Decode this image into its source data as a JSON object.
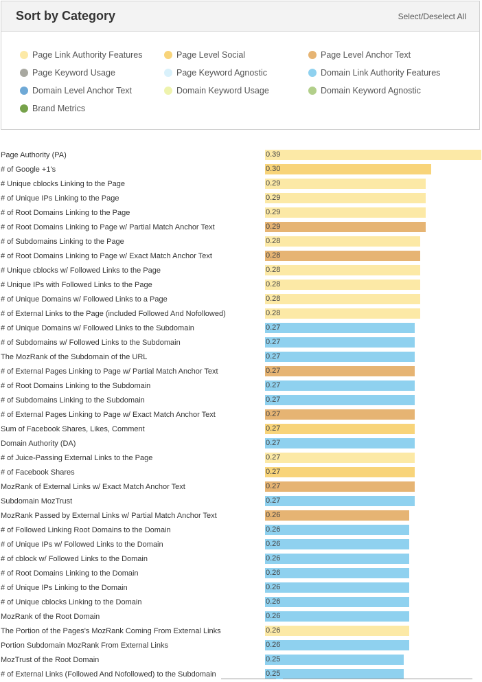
{
  "panel": {
    "title": "Sort by Category",
    "select_toggle": "Select/Deselect All"
  },
  "legend": [
    {
      "label": "Page Link Authority Features",
      "color": "#fce9a6",
      "icon": "dot-icon"
    },
    {
      "label": "Page Level Social",
      "color": "#f8d47a",
      "icon": "dot-icon"
    },
    {
      "label": "Page Level Anchor Text",
      "color": "#e6b473",
      "icon": "dot-icon"
    },
    {
      "label": "Page Keyword Usage",
      "color": "#a8a8a0",
      "icon": "dot-icon"
    },
    {
      "label": "Page Keyword Agnostic",
      "color": "#d9f1fb",
      "icon": "dot-icon"
    },
    {
      "label": "Domain Link Authority Features",
      "color": "#8fd1ef",
      "icon": "dot-icon"
    },
    {
      "label": "Domain Level Anchor Text",
      "color": "#6fa9d6",
      "icon": "dot-icon"
    },
    {
      "label": "Domain Keyword Usage",
      "color": "#eef3ad",
      "icon": "dot-icon"
    },
    {
      "label": "Domain Keyword Agnostic",
      "color": "#b2cf8a",
      "icon": "dot-icon"
    },
    {
      "label": "Brand Metrics",
      "color": "#76a24a",
      "icon": "dot-icon"
    }
  ],
  "chart_data": {
    "type": "bar",
    "orientation": "horizontal",
    "xlim": [
      0,
      0.39
    ],
    "category_colors": {
      "Page Link Authority Features": "#fce9a6",
      "Page Level Social": "#f8d47a",
      "Page Level Anchor Text": "#e6b473",
      "Domain Link Authority Features": "#8fd1ef"
    },
    "rows": [
      {
        "label": "Page Authority (PA)",
        "value": 0.39,
        "category": "Page Link Authority Features"
      },
      {
        "label": "# of Google +1's",
        "value": 0.3,
        "category": "Page Level Social"
      },
      {
        "label": "# Unique cblocks Linking to the Page",
        "value": 0.29,
        "category": "Page Link Authority Features"
      },
      {
        "label": "# of Unique IPs Linking to the Page",
        "value": 0.29,
        "category": "Page Link Authority Features"
      },
      {
        "label": "# of Root Domains Linking to the Page",
        "value": 0.29,
        "category": "Page Link Authority Features"
      },
      {
        "label": "# of Root Domains Linking to Page w/ Partial Match Anchor Text",
        "value": 0.29,
        "category": "Page Level Anchor Text"
      },
      {
        "label": "# of Subdomains Linking to the Page",
        "value": 0.28,
        "category": "Page Link Authority Features"
      },
      {
        "label": "# of Root Domains Linking to Page w/ Exact Match Anchor Text",
        "value": 0.28,
        "category": "Page Level Anchor Text"
      },
      {
        "label": "# Unique cblocks w/ Followed Links to the Page",
        "value": 0.28,
        "category": "Page Link Authority Features"
      },
      {
        "label": "# Unique IPs with Followed Links to the Page",
        "value": 0.28,
        "category": "Page Link Authority Features"
      },
      {
        "label": "# of Unique Domains w/ Followed Links to a Page",
        "value": 0.28,
        "category": "Page Link Authority Features"
      },
      {
        "label": "# of External Links to the Page (included Followed And Nofollowed)",
        "value": 0.28,
        "category": "Page Link Authority Features"
      },
      {
        "label": "# of Unique Domains w/ Followed Links to the Subdomain",
        "value": 0.27,
        "category": "Domain Link Authority Features"
      },
      {
        "label": "# of Subdomains w/ Followed Links to the Subdomain",
        "value": 0.27,
        "category": "Domain Link Authority Features"
      },
      {
        "label": "The MozRank of the Subdomain of the URL",
        "value": 0.27,
        "category": "Domain Link Authority Features"
      },
      {
        "label": "# of External Pages Linking to Page w/ Partial Match Anchor Text",
        "value": 0.27,
        "category": "Page Level Anchor Text"
      },
      {
        "label": "# of Root Domains Linking to the Subdomain",
        "value": 0.27,
        "category": "Domain Link Authority Features"
      },
      {
        "label": "# of Subdomains Linking to the Subdomain",
        "value": 0.27,
        "category": "Domain Link Authority Features"
      },
      {
        "label": "# of External Pages Linking to Page w/ Exact Match Anchor Text",
        "value": 0.27,
        "category": "Page Level Anchor Text"
      },
      {
        "label": "Sum of Facebook Shares, Likes, Comment",
        "value": 0.27,
        "category": "Page Level Social"
      },
      {
        "label": "Domain Authority (DA)",
        "value": 0.27,
        "category": "Domain Link Authority Features"
      },
      {
        "label": "# of Juice-Passing External Links to the Page",
        "value": 0.27,
        "category": "Page Link Authority Features"
      },
      {
        "label": "# of Facebook Shares",
        "value": 0.27,
        "category": "Page Level Social"
      },
      {
        "label": "MozRank of External Links w/ Exact Match Anchor Text",
        "value": 0.27,
        "category": "Page Level Anchor Text"
      },
      {
        "label": "Subdomain MozTrust",
        "value": 0.27,
        "category": "Domain Link Authority Features"
      },
      {
        "label": "MozRank Passed by External Links w/ Partial Match Anchor Text",
        "value": 0.26,
        "category": "Page Level Anchor Text"
      },
      {
        "label": "# of Followed Linking Root Domains to the Domain",
        "value": 0.26,
        "category": "Domain Link Authority Features"
      },
      {
        "label": "# of Unique IPs w/ Followed Links to the Domain",
        "value": 0.26,
        "category": "Domain Link Authority Features"
      },
      {
        "label": "# of cblock w/ Followed Links to the Domain",
        "value": 0.26,
        "category": "Domain Link Authority Features"
      },
      {
        "label": "# of Root Domains Linking to the Domain",
        "value": 0.26,
        "category": "Domain Link Authority Features"
      },
      {
        "label": "# of Unique IPs Linking to the Domain",
        "value": 0.26,
        "category": "Domain Link Authority Features"
      },
      {
        "label": "# of Unique cblocks Linking to the Domain",
        "value": 0.26,
        "category": "Domain Link Authority Features"
      },
      {
        "label": "MozRank of the Root Domain",
        "value": 0.26,
        "category": "Domain Link Authority Features"
      },
      {
        "label": "The Portion of the Pages's MozRank Coming From External Links",
        "value": 0.26,
        "category": "Page Link Authority Features"
      },
      {
        "label": "Portion Subdomain MozRank From External Links",
        "value": 0.26,
        "category": "Domain Link Authority Features"
      },
      {
        "label": "MozTrust of the Root Domain",
        "value": 0.25,
        "category": "Domain Link Authority Features"
      },
      {
        "label": "# of External Links (Followed And Nofollowed) to the Subdomain",
        "value": 0.25,
        "category": "Domain Link Authority Features"
      }
    ]
  }
}
